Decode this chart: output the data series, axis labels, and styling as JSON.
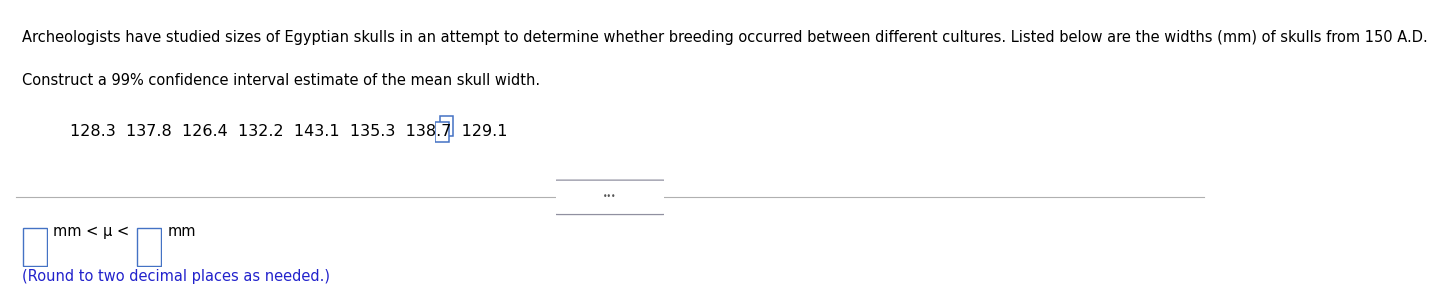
{
  "line1": "Archeologists have studied sizes of Egyptian skulls in an attempt to determine whether breeding occurred between different cultures. Listed below are the widths (mm) of skulls from 150 A.D.",
  "line2": "Construct a 99% confidence interval estimate of the mean skull width.",
  "data_values": "128.3  137.8  126.4  132.2  143.1  135.3  138.7  129.1",
  "note": "(Round to two decimal places as needed.)",
  "bg_color": "#ffffff",
  "text_color": "#000000",
  "blue_color": "#2222cc",
  "box_border_color": "#4472c4",
  "divider_color": "#b0b0b0",
  "dots_border_color": "#9090a0",
  "font_size_body": 10.5,
  "font_size_data": 11.5,
  "font_size_note": 10.5,
  "font_size_dots": 7
}
